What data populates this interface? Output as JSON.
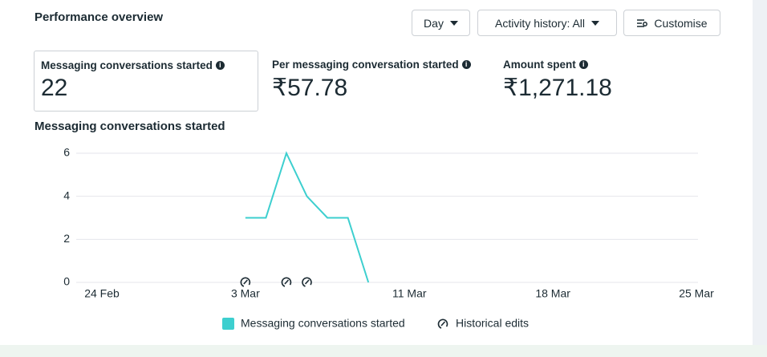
{
  "header": {
    "title": "Performance overview",
    "buttons": [
      "Day",
      "Activity history: All",
      "Customise"
    ]
  },
  "metrics": [
    {
      "label": "Messaging conversations started",
      "value": "22"
    },
    {
      "label": "Per messaging conversation started",
      "value": "₹57.78"
    },
    {
      "label": "Amount spent",
      "value": "₹1,271.18"
    }
  ],
  "chart_data": {
    "type": "line",
    "title": "Messaging conversations started",
    "categories": [
      "24 Feb",
      null,
      null,
      null,
      null,
      null,
      null,
      "3 Mar",
      null,
      null,
      null,
      null,
      null,
      null,
      null,
      "11 Mar",
      null,
      null,
      null,
      null,
      null,
      null,
      "18 Mar",
      null,
      null,
      null,
      null,
      null,
      null,
      "25 Mar"
    ],
    "series": [
      {
        "name": "Messaging conversations started",
        "color": "#3dcfcf",
        "values": [
          null,
          null,
          null,
          null,
          null,
          null,
          null,
          3,
          3,
          6,
          4,
          3,
          3,
          0,
          null,
          null,
          null,
          null,
          null,
          null,
          null,
          null,
          null,
          null,
          null,
          null,
          null,
          null,
          null,
          null
        ]
      },
      {
        "name": "Historical edits",
        "color": "#1c2b33",
        "marker": "edit",
        "values": [
          null,
          null,
          null,
          null,
          null,
          null,
          null,
          0,
          null,
          0,
          0,
          null,
          null,
          null,
          null,
          null,
          null,
          null,
          null,
          null,
          null,
          null,
          null,
          null,
          null,
          null,
          null,
          null,
          null,
          null
        ]
      }
    ],
    "ylim": [
      0,
      6
    ],
    "yticks": [
      0,
      2,
      4,
      6
    ],
    "grid": true
  }
}
